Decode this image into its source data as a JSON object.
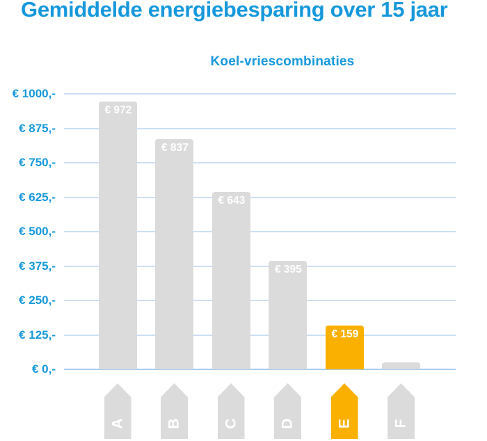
{
  "chart_data": {
    "type": "bar",
    "title": "Gemiddelde energiebesparing over 15 jaar",
    "subtitle": "Koel-vriescombinaties",
    "categories": [
      "A",
      "B",
      "C",
      "D",
      "E",
      "F"
    ],
    "values": [
      972,
      837,
      643,
      395,
      159,
      25
    ],
    "value_labels": [
      "€ 972",
      "€ 837",
      "€ 643",
      "€ 395",
      "€ 159",
      ""
    ],
    "highlight_index": 4,
    "y_ticks": [
      "€ 1000,-",
      "€ 875,-",
      "€ 750,-",
      "€ 625,-",
      "€ 500,-",
      "€ 375,-",
      "€ 250,-",
      "€ 125,-",
      "€ 0,-"
    ],
    "ylim": [
      0,
      1000
    ],
    "grid": true,
    "legend": "none",
    "colors": {
      "text_blue": "#1598DC",
      "bar_gray": "#DBDBDB",
      "highlight_orange": "#F9B000",
      "gridline": "#CCDFF4",
      "axis_line": "#A8CCEE",
      "bar_label": "#FFFFFF"
    }
  }
}
